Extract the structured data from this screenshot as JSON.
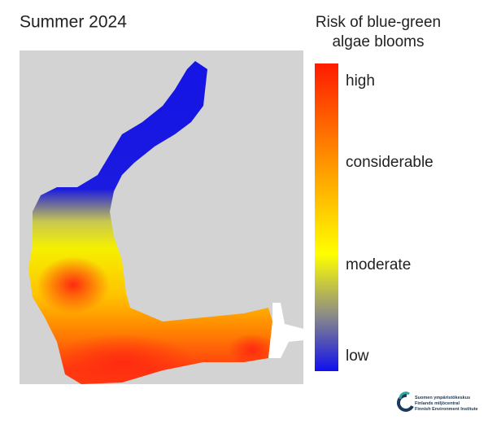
{
  "header": {
    "title": "Summer 2024"
  },
  "legend": {
    "title_lines": [
      "Risk of blue-green",
      "algae blooms"
    ],
    "labels": [
      "high",
      "considerable",
      "moderate",
      "low"
    ]
  },
  "logo": {
    "lines": [
      "Suomen ympäristökeskus",
      "Finlands miljöcentral",
      "Finnish Environment Institute"
    ]
  }
}
